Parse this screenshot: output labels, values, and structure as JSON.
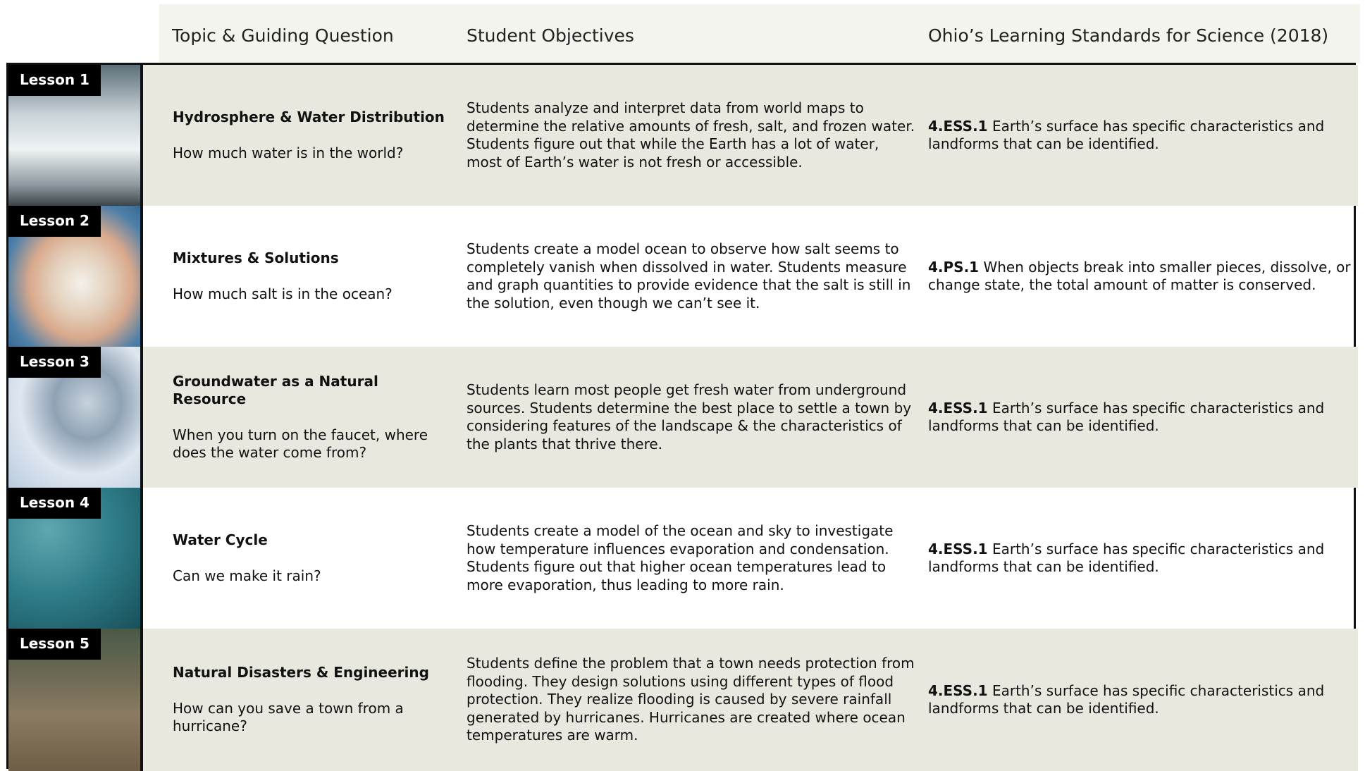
{
  "header": {
    "columns": [
      "Topic & Guiding Question",
      "Student Objectives",
      "Ohio’s Learning Standards for Science (2018)"
    ]
  },
  "lessons": [
    {
      "label": "Lesson 1",
      "topic": "Hydrosphere &  Water Distribution",
      "question": "How much water is in the world?",
      "objectives": "Students analyze and interpret data from world maps to determine the relative amounts of fresh, salt, and frozen water. Students figure out that while the Earth has a lot of water, most of Earth’s water is not fresh or accessible.",
      "standard_code": "4.ESS.1",
      "standard_text": "Earth’s surface has specific characteristics and landforms that can be identified."
    },
    {
      "label": "Lesson 2",
      "topic": "Mixtures & Solutions",
      "question": "How much salt is in the ocean?",
      "objectives": "Students create a model ocean to observe how salt seems to completely vanish when dissolved in water. Students measure and graph quantities to provide evidence that the salt is still in the solution, even though we can’t see it.",
      "standard_code": "4.PS.1",
      "standard_text": "When objects break into smaller pieces, dissolve, or change state, the total amount of matter is conserved."
    },
    {
      "label": "Lesson 3",
      "topic": "Groundwater as a Natural Resource",
      "question": "When you turn on the faucet, where does the water come from?",
      "objectives": "Students learn most people get fresh water from underground sources. Students determine the best place to settle a town by considering features of the landscape & the characteristics of the plants that thrive there.",
      "standard_code": "4.ESS.1",
      "standard_text": "Earth’s surface has specific characteristics and landforms that can be identified."
    },
    {
      "label": "Lesson 4",
      "topic": "Water Cycle",
      "question": "Can we make it rain?",
      "objectives": "Students create a model of the ocean and sky to investigate how temperature influences evaporation and condensation. Students figure out that higher ocean temperatures lead to more evaporation, thus leading to more rain.",
      "standard_code": "4.ESS.1",
      "standard_text": "Earth’s surface has specific characteristics and landforms that can be identified."
    },
    {
      "label": "Lesson 5",
      "topic": "Natural Disasters & Engineering",
      "question": "How can you save a town from a hurricane?",
      "objectives": "Students define the problem that a town needs protection from flooding. They design solutions using different types of flood protection. They realize flooding is caused by severe rainfall generated by hurricanes. Hurricanes are created where ocean temperatures are warm.",
      "standard_code": "4.ESS.1",
      "standard_text": "Earth’s surface has specific characteristics and landforms that can be identified."
    }
  ]
}
